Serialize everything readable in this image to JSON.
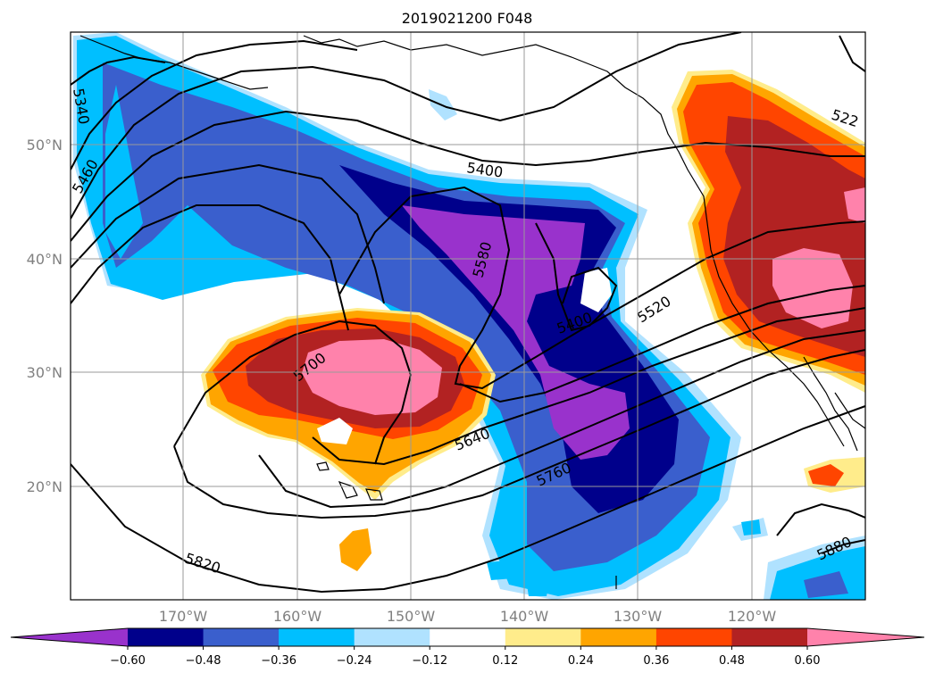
{
  "title": "2019021200 F048",
  "lat_labels": [
    "50°N",
    "40°N",
    "30°N",
    "20°N"
  ],
  "lon_labels": [
    "170°W",
    "160°W",
    "150°W",
    "140°W",
    "130°W",
    "120°W"
  ],
  "colorbar": {
    "ticks": [
      "−0.60",
      "−0.48",
      "−0.36",
      "−0.24",
      "−0.12",
      "0.12",
      "0.24",
      "0.36",
      "0.48",
      "0.60"
    ],
    "colors": [
      "#9932cc",
      "#00008b",
      "#3a5fcd",
      "#00bfff",
      "#b0e2ff",
      "#ffffff",
      "#ffec8b",
      "#ffa500",
      "#ff4500",
      "#b22222",
      "#ff82ab"
    ]
  },
  "contour_labels": {
    "c5340": "5340",
    "c5460": "5460",
    "c5400a": "5400",
    "c5580": "5580",
    "c5400b": "5400",
    "c5520": "5520",
    "c522": "522",
    "c5700": "5700",
    "c5640": "5640",
    "c5760": "5760",
    "c5820": "5820",
    "c5880": "5880"
  }
}
